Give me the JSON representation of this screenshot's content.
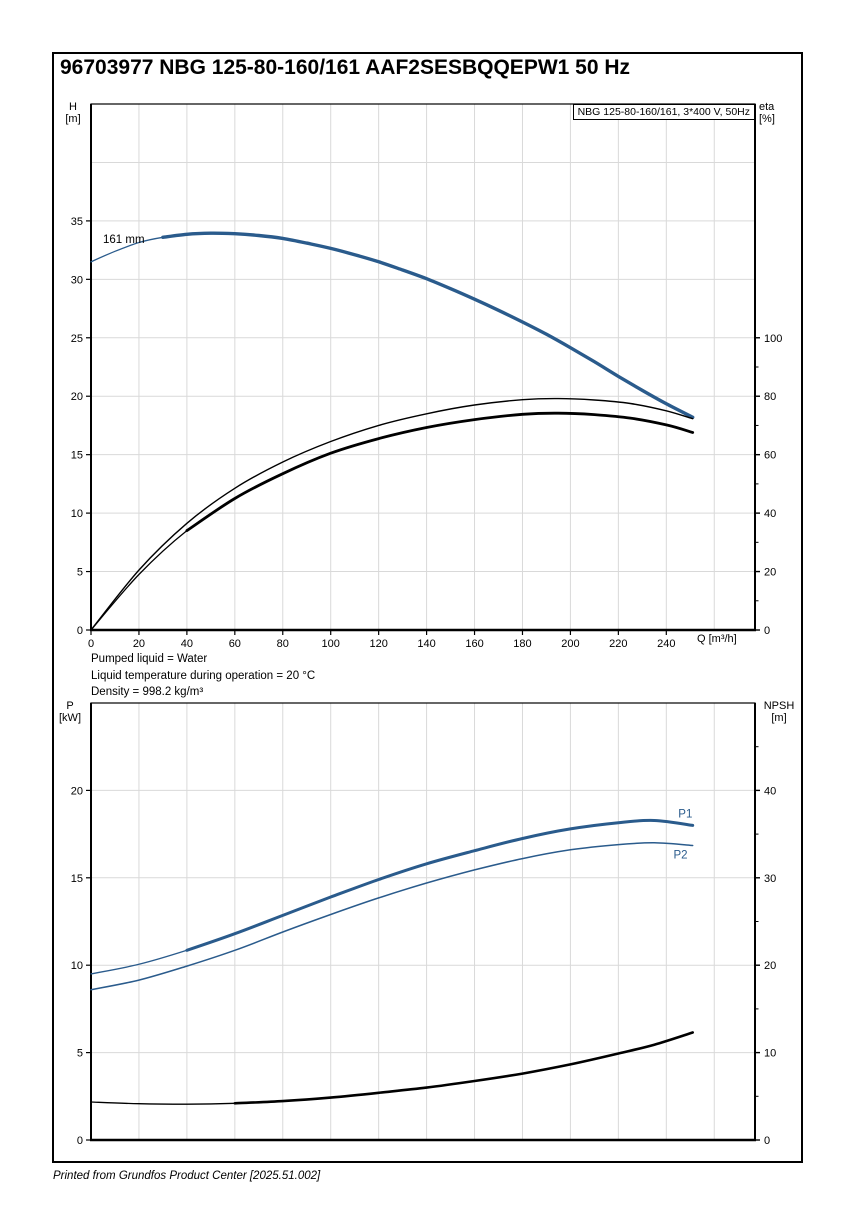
{
  "page": {
    "title": "96703977 NBG 125-80-160/161 AAF2SESBQQEPW1 50 Hz",
    "footer": "Printed from Grundfos Product Center [2025.51.002]"
  },
  "conditions": {
    "lines": [
      "Pumped liquid = Water",
      "Liquid temperature during operation = 20 °C",
      "Density = 998.2 kg/m³"
    ]
  },
  "chart_data": [
    {
      "type": "line",
      "title": "Head and efficiency vs flow",
      "legend": "NBG 125-80-160/161, 3*400 V, 50Hz",
      "x": {
        "label": "Q [m³/h]",
        "range": [
          0,
          277
        ],
        "grid_step": 20,
        "tick_step": 20,
        "tick_max": 240,
        "tick_labels": true
      },
      "y_left": {
        "label": "H",
        "unit": "[m]",
        "range": [
          0,
          45
        ],
        "grid_step": 5,
        "ticks": [
          0,
          5,
          10,
          15,
          20,
          25,
          30,
          35
        ]
      },
      "y_right": {
        "label": "eta",
        "unit": "[%]",
        "range": [
          0,
          180
        ],
        "ticks": [
          0,
          20,
          40,
          60,
          80,
          100
        ],
        "minor_ticks": [
          10,
          30,
          50,
          70,
          90
        ]
      },
      "series": [
        {
          "name": "head-curve-161mm",
          "axis": "left",
          "color": "#2a5b8c",
          "width": 3.4,
          "thin_until": 25,
          "points": [
            [
              0,
              31.5
            ],
            [
              10,
              32.4
            ],
            [
              20,
              33.15
            ],
            [
              30,
              33.6
            ],
            [
              40,
              33.85
            ],
            [
              50,
              33.95
            ],
            [
              60,
              33.9
            ],
            [
              70,
              33.75
            ],
            [
              80,
              33.5
            ],
            [
              90,
              33.1
            ],
            [
              100,
              32.65
            ],
            [
              110,
              32.1
            ],
            [
              120,
              31.5
            ],
            [
              130,
              30.8
            ],
            [
              140,
              30.05
            ],
            [
              150,
              29.2
            ],
            [
              160,
              28.3
            ],
            [
              170,
              27.35
            ],
            [
              180,
              26.35
            ],
            [
              190,
              25.3
            ],
            [
              200,
              24.15
            ],
            [
              210,
              22.95
            ],
            [
              220,
              21.7
            ],
            [
              230,
              20.5
            ],
            [
              240,
              19.35
            ],
            [
              251,
              18.2
            ]
          ]
        },
        {
          "name": "efficiency-curve-thin",
          "axis": "right",
          "color": "#000000",
          "width": 1.4,
          "points": [
            [
              0,
              0
            ],
            [
              20,
              20.5
            ],
            [
              40,
              36.5
            ],
            [
              60,
              48.5
            ],
            [
              80,
              57.5
            ],
            [
              100,
              64.5
            ],
            [
              120,
              70
            ],
            [
              140,
              74
            ],
            [
              160,
              77
            ],
            [
              180,
              78.8
            ],
            [
              195,
              79.2
            ],
            [
              210,
              78.7
            ],
            [
              225,
              77.5
            ],
            [
              240,
              75
            ],
            [
              251,
              72.3
            ]
          ]
        },
        {
          "name": "efficiency-curve-thick",
          "axis": "right",
          "color": "#000000",
          "width": 2.8,
          "thin_until": 25,
          "points": [
            [
              0,
              0
            ],
            [
              20,
              19
            ],
            [
              40,
              34
            ],
            [
              60,
              45
            ],
            [
              80,
              53.5
            ],
            [
              100,
              60.5
            ],
            [
              120,
              65.5
            ],
            [
              140,
              69.3
            ],
            [
              160,
              72
            ],
            [
              180,
              73.8
            ],
            [
              195,
              74.2
            ],
            [
              210,
              73.7
            ],
            [
              225,
              72.5
            ],
            [
              240,
              70.2
            ],
            [
              251,
              67.6
            ]
          ]
        }
      ],
      "annotations": [
        {
          "text": "161 mm",
          "q": 5,
          "v": 33.1,
          "axis": "left",
          "color": "#000000"
        }
      ]
    },
    {
      "type": "line",
      "title": "Power and NPSH vs flow",
      "x": {
        "label": "",
        "range": [
          0,
          277
        ],
        "grid_step": 20,
        "tick_step": 20,
        "tick_max": 0,
        "tick_labels": false
      },
      "y_left": {
        "label": "P",
        "unit": "[kW]",
        "range": [
          0,
          25
        ],
        "grid_step": 5,
        "ticks": [
          0,
          5,
          10,
          15,
          20
        ]
      },
      "y_right": {
        "label": "NPSH",
        "unit": "[m]",
        "range": [
          0,
          50
        ],
        "ticks": [
          0,
          10,
          20,
          30,
          40
        ],
        "minor_ticks": [
          5,
          15,
          25,
          35,
          45
        ]
      },
      "series": [
        {
          "name": "power-curve-p1",
          "axis": "left",
          "color": "#2a5b8c",
          "width": 3.0,
          "thin_until": 25,
          "points": [
            [
              0,
              9.5
            ],
            [
              20,
              10.05
            ],
            [
              40,
              10.85
            ],
            [
              60,
              11.8
            ],
            [
              80,
              12.85
            ],
            [
              100,
              13.9
            ],
            [
              120,
              14.9
            ],
            [
              140,
              15.8
            ],
            [
              160,
              16.55
            ],
            [
              180,
              17.25
            ],
            [
              200,
              17.8
            ],
            [
              220,
              18.15
            ],
            [
              235,
              18.28
            ],
            [
              251,
              18.0
            ]
          ]
        },
        {
          "name": "power-curve-p2",
          "axis": "left",
          "color": "#2a5b8c",
          "width": 1.5,
          "points": [
            [
              0,
              8.6
            ],
            [
              20,
              9.15
            ],
            [
              40,
              9.95
            ],
            [
              60,
              10.85
            ],
            [
              80,
              11.9
            ],
            [
              100,
              12.9
            ],
            [
              120,
              13.85
            ],
            [
              140,
              14.7
            ],
            [
              160,
              15.45
            ],
            [
              180,
              16.1
            ],
            [
              200,
              16.6
            ],
            [
              220,
              16.9
            ],
            [
              235,
              17.0
            ],
            [
              251,
              16.85
            ]
          ]
        },
        {
          "name": "npsh-curve",
          "axis": "right",
          "color": "#000000",
          "width": 2.6,
          "thin_until": 45,
          "points": [
            [
              0,
              4.35
            ],
            [
              20,
              4.15
            ],
            [
              40,
              4.1
            ],
            [
              60,
              4.2
            ],
            [
              80,
              4.45
            ],
            [
              100,
              4.85
            ],
            [
              120,
              5.4
            ],
            [
              140,
              6.0
            ],
            [
              160,
              6.75
            ],
            [
              180,
              7.6
            ],
            [
              200,
              8.65
            ],
            [
              220,
              9.9
            ],
            [
              235,
              10.9
            ],
            [
              251,
              12.3
            ]
          ]
        }
      ],
      "annotations": [
        {
          "text": "P1",
          "q": 245,
          "v": 18.45,
          "axis": "left",
          "color": "#2a5b8c"
        },
        {
          "text": "P2",
          "q": 243,
          "v": 16.1,
          "axis": "left",
          "color": "#2a5b8c"
        }
      ]
    }
  ]
}
